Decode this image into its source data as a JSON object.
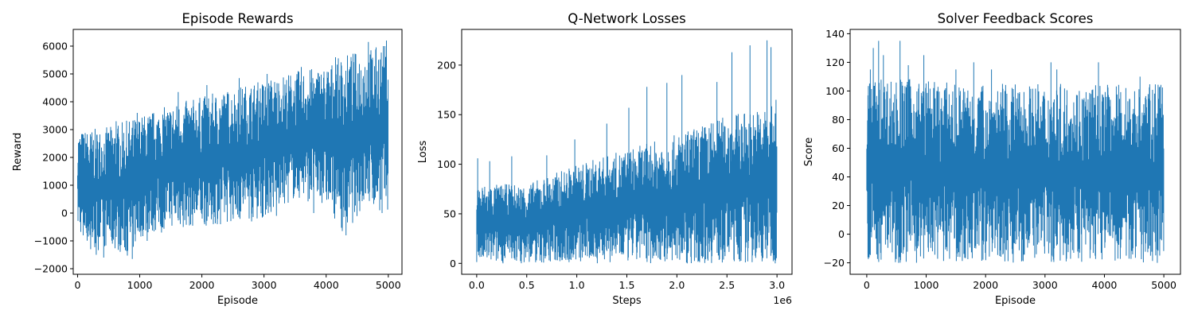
{
  "colors": {
    "series": "#1f77b4",
    "axes": "#000000",
    "background": "#ffffff"
  },
  "chart_data": [
    {
      "type": "line",
      "title": "Episode Rewards",
      "xlabel": "Episode",
      "ylabel": "Reward",
      "xlim": [
        -70,
        5220
      ],
      "ylim": [
        -2200,
        6600
      ],
      "xticks": [
        0,
        1000,
        2000,
        3000,
        4000,
        5000
      ],
      "xtick_labels": [
        "0",
        "1000",
        "2000",
        "3000",
        "4000",
        "5000"
      ],
      "yticks": [
        -2000,
        -1000,
        0,
        1000,
        2000,
        3000,
        4000,
        5000,
        6000
      ],
      "ytick_labels": [
        "−2000",
        "−1000",
        "0",
        "1000",
        "2000",
        "3000",
        "4000",
        "5000",
        "6000"
      ],
      "offset_label": "",
      "grid": false,
      "legend": "none",
      "series": [
        {
          "color": "#1f77b4",
          "x_range": [
            0,
            5000
          ],
          "upper_envelope": [
            [
              0,
              2950
            ],
            [
              500,
              3100
            ],
            [
              1000,
              3500
            ],
            [
              1500,
              3900
            ],
            [
              2000,
              4200
            ],
            [
              2500,
              4500
            ],
            [
              3000,
              4800
            ],
            [
              3500,
              5100
            ],
            [
              4000,
              5300
            ],
            [
              4300,
              5700
            ],
            [
              4800,
              6000
            ],
            [
              5000,
              6100
            ]
          ],
          "lower_envelope": [
            [
              0,
              -600
            ],
            [
              250,
              -1400
            ],
            [
              500,
              -1200
            ],
            [
              850,
              -1600
            ],
            [
              1000,
              -900
            ],
            [
              1500,
              -500
            ],
            [
              2000,
              -500
            ],
            [
              2500,
              -300
            ],
            [
              3000,
              -200
            ],
            [
              3500,
              500
            ],
            [
              4000,
              300
            ],
            [
              4300,
              -800
            ],
            [
              4600,
              200
            ],
            [
              5000,
              0
            ]
          ],
          "spikes": [
            [
              140,
              2500
            ],
            [
              620,
              3300
            ],
            [
              960,
              3600
            ],
            [
              1620,
              4350
            ],
            [
              2080,
              4600
            ],
            [
              2600,
              4850
            ],
            [
              3050,
              5000
            ],
            [
              3600,
              5250
            ],
            [
              4150,
              5600
            ],
            [
              4680,
              6150
            ],
            [
              4970,
              6200
            ]
          ],
          "dips": [
            [
              90,
              -800
            ],
            [
              210,
              -1300
            ],
            [
              300,
              -1500
            ],
            [
              420,
              -1600
            ],
            [
              560,
              -1100
            ],
            [
              880,
              -1650
            ],
            [
              1120,
              -1000
            ],
            [
              1350,
              -700
            ],
            [
              1700,
              -500
            ],
            [
              2300,
              -400
            ],
            [
              2800,
              -300
            ],
            [
              3200,
              -100
            ],
            [
              3800,
              0
            ],
            [
              4320,
              -800
            ],
            [
              4900,
              0
            ]
          ]
        }
      ]
    },
    {
      "type": "line",
      "title": "Q-Network Losses",
      "xlabel": "Steps",
      "ylabel": "Loss",
      "xlim": [
        -150000,
        3150000
      ],
      "ylim": [
        -11,
        236
      ],
      "xticks": [
        0,
        500000,
        1000000,
        1500000,
        2000000,
        2500000,
        3000000
      ],
      "xtick_labels": [
        "0.0",
        "0.5",
        "1.0",
        "1.5",
        "2.0",
        "2.5",
        "3.0"
      ],
      "yticks": [
        0,
        50,
        100,
        150,
        200
      ],
      "ytick_labels": [
        "0",
        "50",
        "100",
        "150",
        "200"
      ],
      "offset_label": "1e6",
      "grid": false,
      "legend": "none",
      "series": [
        {
          "color": "#1f77b4",
          "x_range": [
            0,
            3000000
          ],
          "upper_envelope": [
            [
              0,
              80
            ],
            [
              500000,
              80
            ],
            [
              750000,
              90
            ],
            [
              1000000,
              100
            ],
            [
              1500000,
              115
            ],
            [
              2000000,
              130
            ],
            [
              2500000,
              150
            ],
            [
              3000000,
              160
            ]
          ],
          "lower_envelope": [
            [
              0,
              0
            ],
            [
              3000000,
              0
            ]
          ],
          "spikes": [
            [
              10000,
              106
            ],
            [
              130000,
              103
            ],
            [
              350000,
              108
            ],
            [
              700000,
              109
            ],
            [
              980000,
              125
            ],
            [
              1300000,
              141
            ],
            [
              1520000,
              157
            ],
            [
              1700000,
              178
            ],
            [
              1900000,
              182
            ],
            [
              2050000,
              190
            ],
            [
              2400000,
              183
            ],
            [
              2550000,
              213
            ],
            [
              2730000,
              220
            ],
            [
              2900000,
              225
            ],
            [
              2940000,
              218
            ],
            [
              2990000,
              165
            ]
          ],
          "dips": []
        }
      ]
    },
    {
      "type": "line",
      "title": "Solver Feedback Scores",
      "xlabel": "Episode",
      "ylabel": "Score",
      "xlim": [
        -280,
        5280
      ],
      "ylim": [
        -28,
        143
      ],
      "xticks": [
        0,
        1000,
        2000,
        3000,
        4000,
        5000
      ],
      "xtick_labels": [
        "0",
        "1000",
        "2000",
        "3000",
        "4000",
        "5000"
      ],
      "yticks": [
        -20,
        0,
        20,
        40,
        60,
        80,
        100,
        120,
        140
      ],
      "ytick_labels": [
        "−20",
        "0",
        "20",
        "40",
        "60",
        "80",
        "100",
        "120",
        "140"
      ],
      "offset_label": "",
      "grid": false,
      "legend": "none",
      "series": [
        {
          "color": "#1f77b4",
          "x_range": [
            0,
            5000
          ],
          "upper_envelope": [
            [
              0,
              110
            ],
            [
              500,
              110
            ],
            [
              1000,
              108
            ],
            [
              1500,
              105
            ],
            [
              2000,
              105
            ],
            [
              5000,
              105
            ]
          ],
          "lower_envelope": [
            [
              0,
              -20
            ],
            [
              5000,
              -20
            ]
          ],
          "spikes": [
            [
              60,
              115
            ],
            [
              110,
              130
            ],
            [
              200,
              135
            ],
            [
              280,
              125
            ],
            [
              560,
              135
            ],
            [
              700,
              118
            ],
            [
              960,
              125
            ],
            [
              1500,
              115
            ],
            [
              1800,
              120
            ],
            [
              2100,
              115
            ],
            [
              3100,
              120
            ],
            [
              3200,
              115
            ],
            [
              3900,
              120
            ],
            [
              4600,
              110
            ]
          ],
          "dips": []
        }
      ]
    }
  ]
}
